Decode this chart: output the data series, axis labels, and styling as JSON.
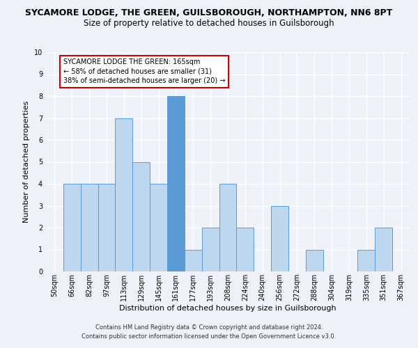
{
  "title_line1": "SYCAMORE LODGE, THE GREEN, GUILSBOROUGH, NORTHAMPTON, NN6 8PT",
  "title_line2": "Size of property relative to detached houses in Guilsborough",
  "xlabel": "Distribution of detached houses by size in Guilsborough",
  "ylabel": "Number of detached properties",
  "categories": [
    "50sqm",
    "66sqm",
    "82sqm",
    "97sqm",
    "113sqm",
    "129sqm",
    "145sqm",
    "161sqm",
    "177sqm",
    "193sqm",
    "208sqm",
    "224sqm",
    "240sqm",
    "256sqm",
    "272sqm",
    "288sqm",
    "304sqm",
    "319sqm",
    "335sqm",
    "351sqm",
    "367sqm"
  ],
  "values": [
    0,
    4,
    4,
    4,
    7,
    5,
    4,
    8,
    1,
    2,
    4,
    2,
    0,
    3,
    0,
    1,
    0,
    0,
    1,
    2,
    0
  ],
  "highlight_index": 7,
  "highlight_bar_color": "#5b9bd5",
  "normal_bar_color": "#bdd7ee",
  "bar_edge_color": "#5b9bd5",
  "ylim": [
    0,
    10
  ],
  "yticks": [
    0,
    1,
    2,
    3,
    4,
    5,
    6,
    7,
    8,
    9,
    10
  ],
  "annotation_text": "SYCAMORE LODGE THE GREEN: 165sqm\n← 58% of detached houses are smaller (31)\n38% of semi-detached houses are larger (20) →",
  "annotation_box_color": "#ffffff",
  "annotation_box_edge": "#cc0000",
  "footer_line1": "Contains HM Land Registry data © Crown copyright and database right 2024.",
  "footer_line2": "Contains public sector information licensed under the Open Government Licence v3.0.",
  "bg_color": "#eef2f8",
  "grid_color": "#ffffff",
  "title1_fontsize": 9,
  "title2_fontsize": 8.5,
  "axis_label_fontsize": 8,
  "tick_fontsize": 7,
  "annotation_fontsize": 7,
  "footer_fontsize": 6
}
